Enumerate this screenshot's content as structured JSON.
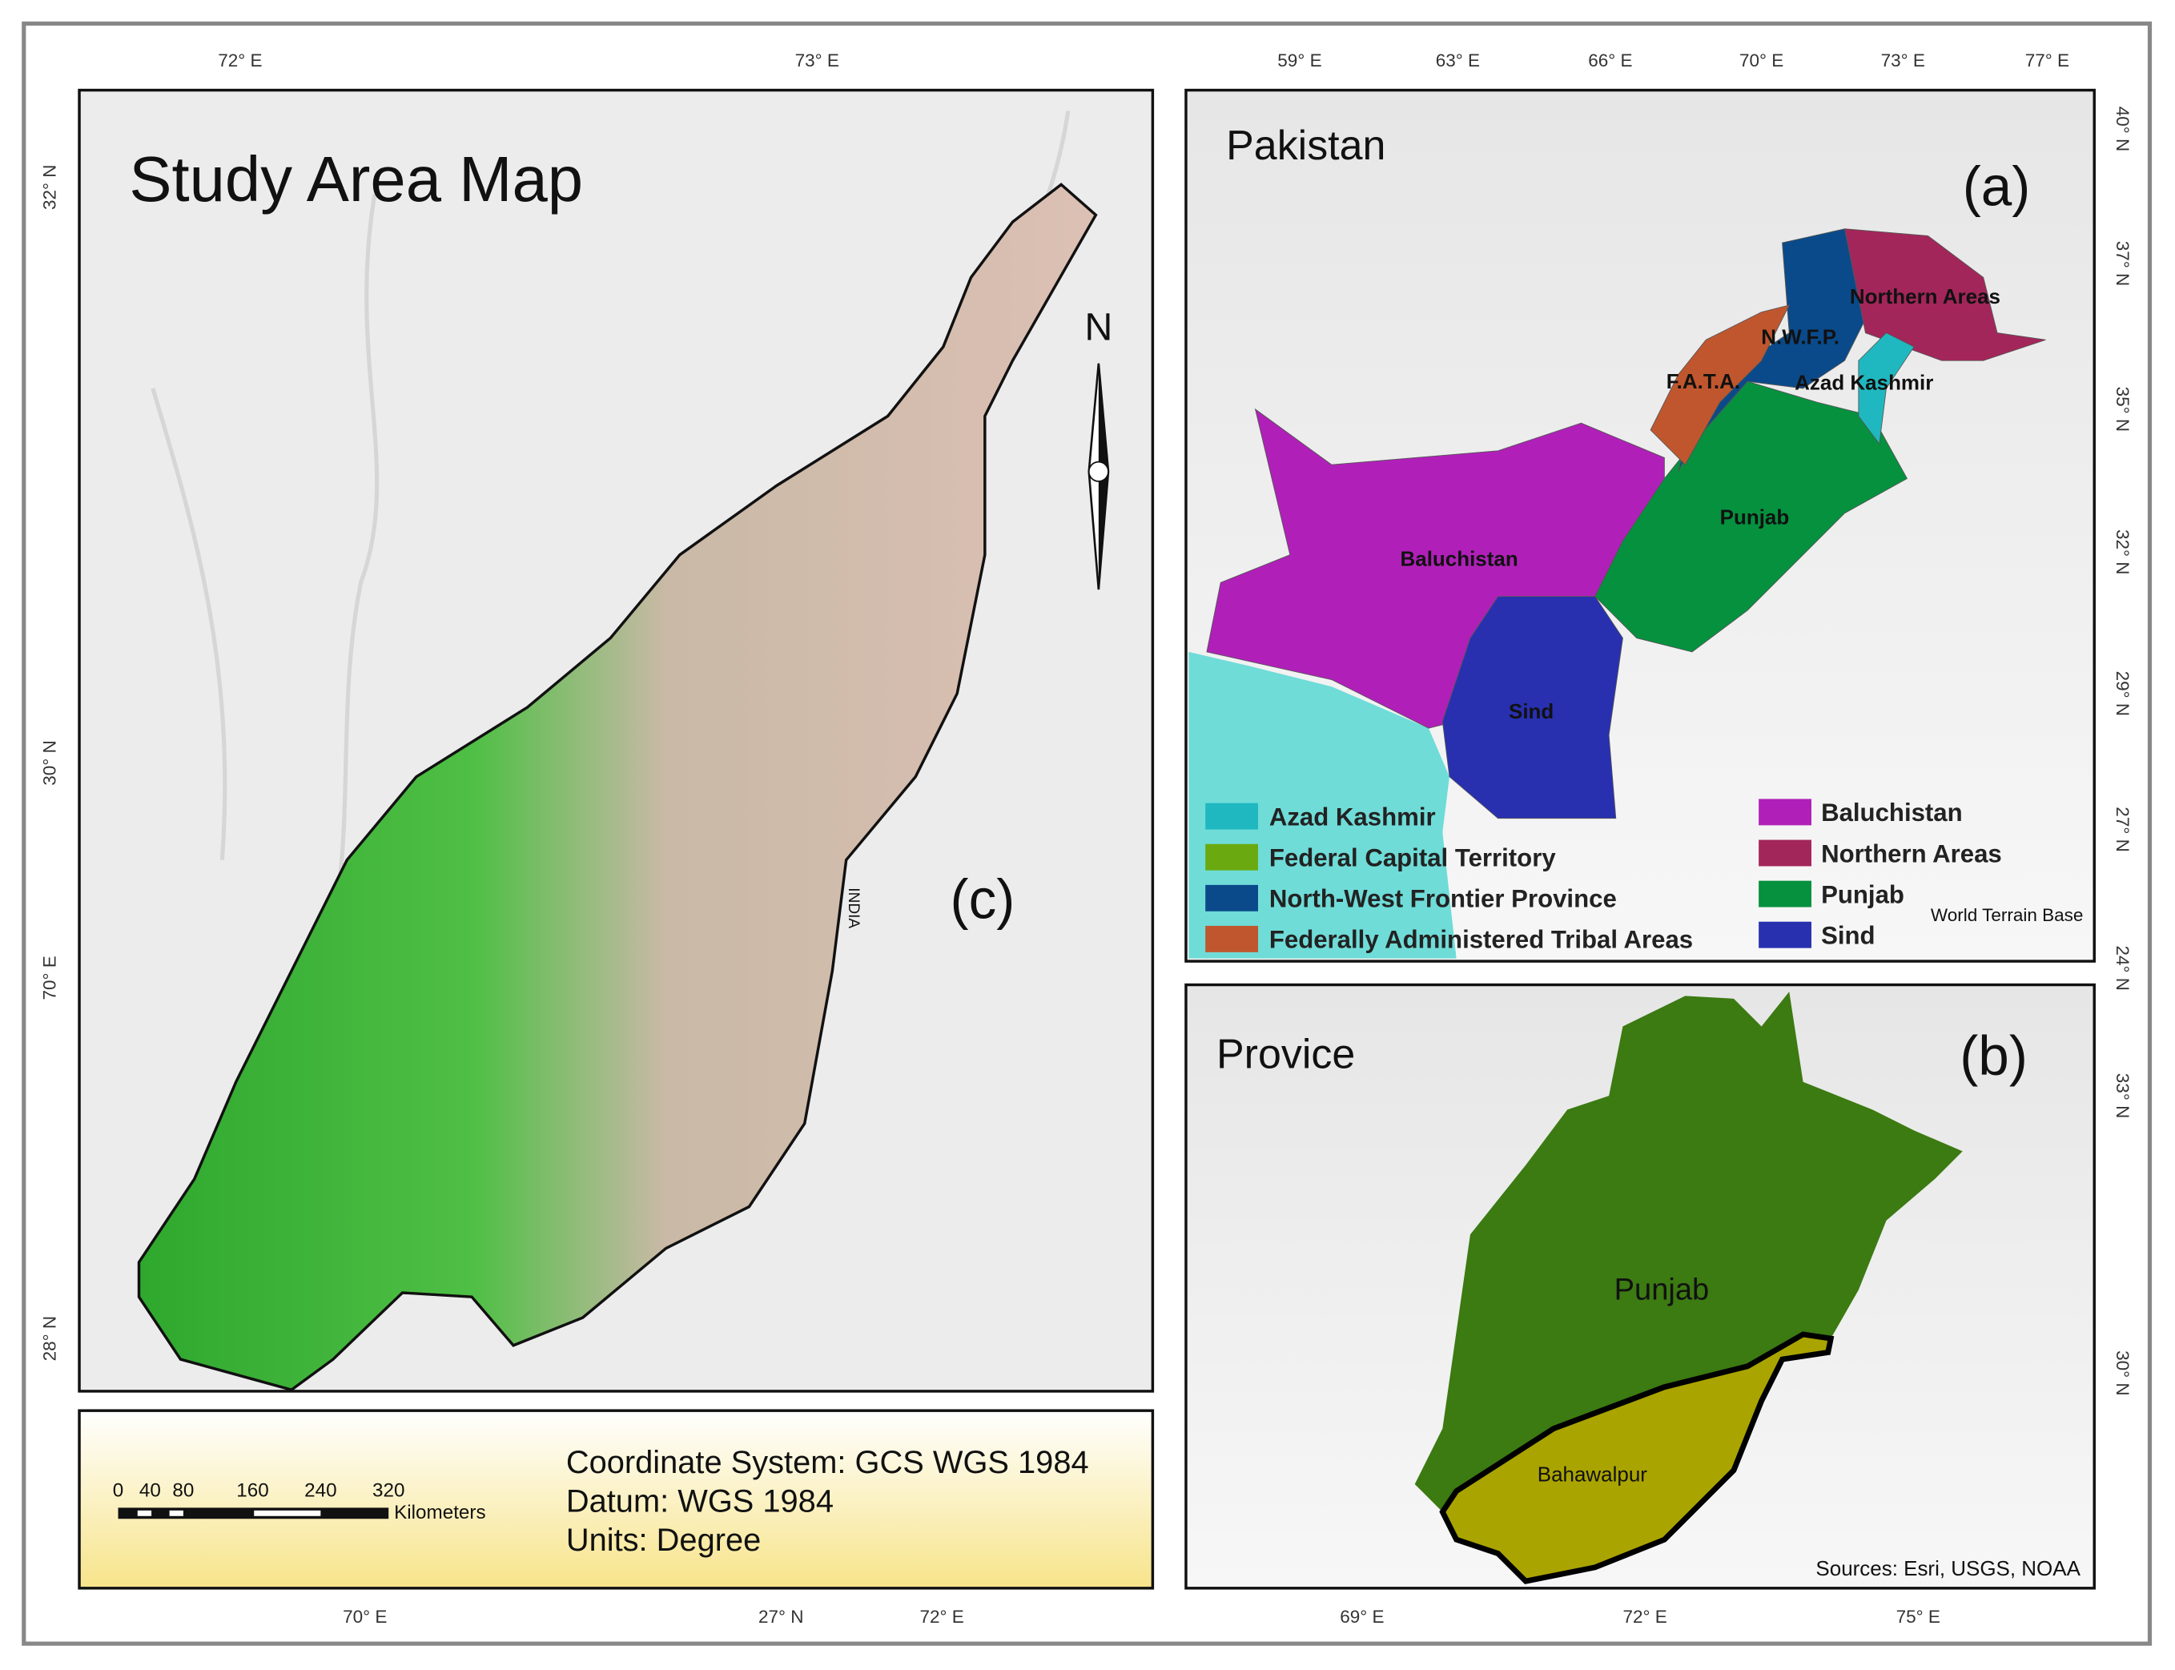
{
  "panel_c": {
    "title": "Study Area Map",
    "label": "(c)",
    "north": "N",
    "watermark": "INDIA",
    "top_labels": [
      "72° E",
      "73° E"
    ],
    "left_labels": [
      "32° N",
      "30° N",
      "70° E",
      "28° N"
    ],
    "bottom_labels": [
      "70° E",
      "27° N",
      "72° E"
    ],
    "info": {
      "coordinate_system": "Coordinate System: GCS WGS 1984",
      "datum": "Datum: WGS 1984",
      "units": "Units: Degree"
    },
    "scale_bar": {
      "ticks": [
        "0",
        "40",
        "80",
        "160",
        "240",
        "320"
      ],
      "unit": "Kilometers"
    }
  },
  "panel_a": {
    "title": "Pakistan",
    "label": "(a)",
    "credit": "World Terrain Base",
    "top_labels": [
      "59° E",
      "63° E",
      "66° E",
      "70° E",
      "73° E",
      "77° E"
    ],
    "right_labels": [
      "40° N",
      "37° N",
      "35° N",
      "32° N",
      "29° N",
      "27° N",
      "24° N"
    ],
    "regions": [
      {
        "label": "Baluchistan",
        "color": "#b020b8"
      },
      {
        "label": "Sind",
        "color": "#2830b0"
      },
      {
        "label": "Punjab",
        "color": "#05913e"
      },
      {
        "label": "N.W.F.P.",
        "color": "#0a4a8a"
      },
      {
        "label": "F.A.T.A.",
        "color": "#c0562e"
      },
      {
        "label": "Northern Areas",
        "color": "#a3265a"
      },
      {
        "label": "Azad Kashmir",
        "color": "#20b8c0"
      }
    ],
    "legend": [
      {
        "name": "Azad Kashmir",
        "color": "#20b8c0"
      },
      {
        "name": "Federal Capital Territory",
        "color": "#6aaa10"
      },
      {
        "name": "North-West Frontier Province",
        "color": "#0a4a8a"
      },
      {
        "name": "Federally Administered Tribal Areas",
        "color": "#c0562e"
      },
      {
        "name": "Baluchistan",
        "color": "#b020b8"
      },
      {
        "name": "Northern Areas",
        "color": "#a3265a"
      },
      {
        "name": "Punjab",
        "color": "#05913e"
      },
      {
        "name": "Sind",
        "color": "#2830b0"
      }
    ]
  },
  "panel_b": {
    "title": "Provice",
    "label": "(b)",
    "regions": [
      "Punjab",
      "Bahawalpur"
    ],
    "credit": "Sources: Esri, USGS, NOAA",
    "right_labels": [
      "33° N",
      "30° N"
    ],
    "bottom_labels": [
      "69° E",
      "72° E",
      "75° E"
    ]
  }
}
